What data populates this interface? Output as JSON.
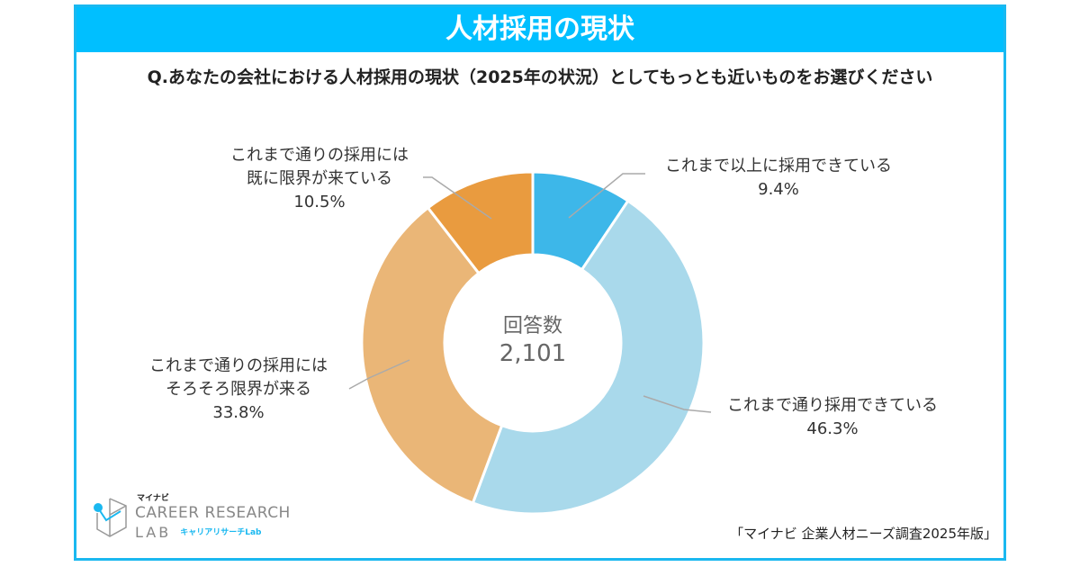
{
  "header": {
    "title": "人材採用の現状"
  },
  "question": "Q.あなたの会社における人材採用の現状（2025年の状況）としてもっとも近いものをお選びください",
  "chart_data": {
    "type": "pie",
    "donut": true,
    "title": "人材採用の現状",
    "center_label": "回答数",
    "center_value": "2,101",
    "slices": [
      {
        "label_lines": [
          "これまで以上に採用できている"
        ],
        "value": 9.4,
        "value_label": "9.4%",
        "color": "#3db7e9"
      },
      {
        "label_lines": [
          "これまで通り採用できている"
        ],
        "value": 46.3,
        "value_label": "46.3%",
        "color": "#a9d9eb"
      },
      {
        "label_lines": [
          "これまで通りの採用には",
          "そろそろ限界が来る"
        ],
        "value": 33.8,
        "value_label": "33.8%",
        "color": "#eab677"
      },
      {
        "label_lines": [
          "これまで通りの採用には",
          "既に限界が来ている"
        ],
        "value": 10.5,
        "value_label": "10.5%",
        "color": "#e99b3f"
      }
    ]
  },
  "source": "「マイナビ 企業人材ニーズ調査2025年版」",
  "logo": {
    "small": "マイナビ",
    "line1": "CAREER RESEARCH",
    "line2": "LAB",
    "kana": "キャリアリサーチLab"
  }
}
